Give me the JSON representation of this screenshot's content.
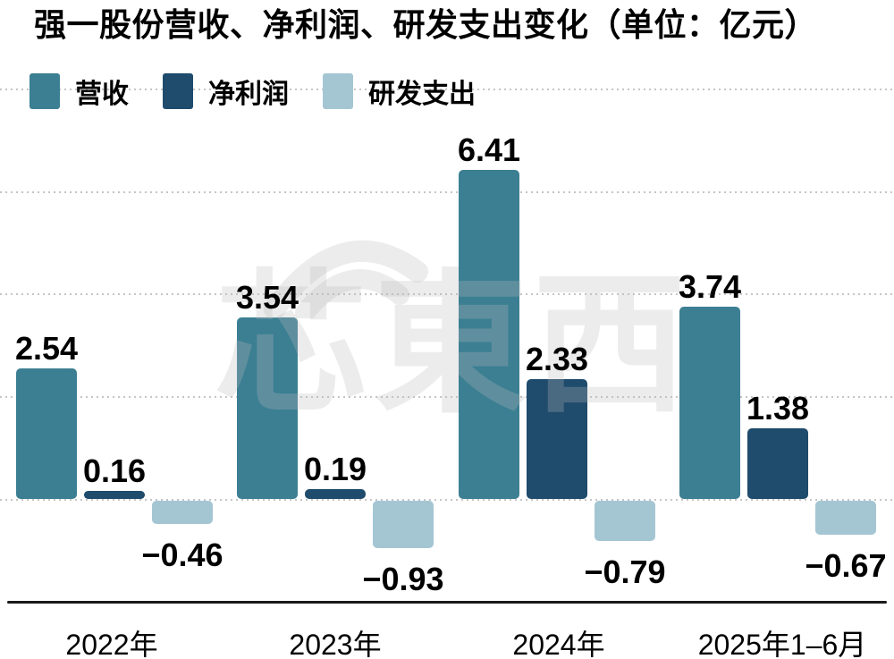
{
  "chart_data": {
    "type": "bar",
    "title": "强一股份营收、净利润、研发支出变化（单位：亿元）",
    "unit": "亿元",
    "categories": [
      "2022年",
      "2023年",
      "2024年",
      "2025年1–6月"
    ],
    "series": [
      {
        "key": "revenue",
        "name": "营收",
        "color": "#3C7F93",
        "values": [
          2.54,
          3.54,
          6.41,
          3.74
        ]
      },
      {
        "key": "net-profit",
        "name": "净利润",
        "color": "#1F4B6C",
        "values": [
          0.16,
          0.19,
          2.33,
          1.38
        ]
      },
      {
        "key": "rd-spending",
        "name": "研发支出",
        "color": "#A4C6D3",
        "values": [
          -0.46,
          -0.93,
          -0.79,
          -0.67
        ]
      }
    ],
    "value_labels": {
      "revenue": [
        "2.54",
        "3.54",
        "6.41",
        "3.74"
      ],
      "net-profit": [
        "0.16",
        "0.19",
        "2.33",
        "1.38"
      ],
      "rd-spending": [
        "−0.46",
        "−0.93",
        "−0.79",
        "−0.67"
      ]
    },
    "ylim": [
      -1.4,
      8
    ],
    "gridline_values": [
      0,
      2,
      4,
      6,
      8
    ],
    "grid_style": "dotted",
    "legend_position": "top-left",
    "xlabel": "",
    "ylabel": ""
  },
  "watermark": "芯東西",
  "colors": {
    "grid": "#c5c5c5",
    "axis": "#1a1a1a",
    "text": "#000000",
    "background": "#ffffff"
  }
}
